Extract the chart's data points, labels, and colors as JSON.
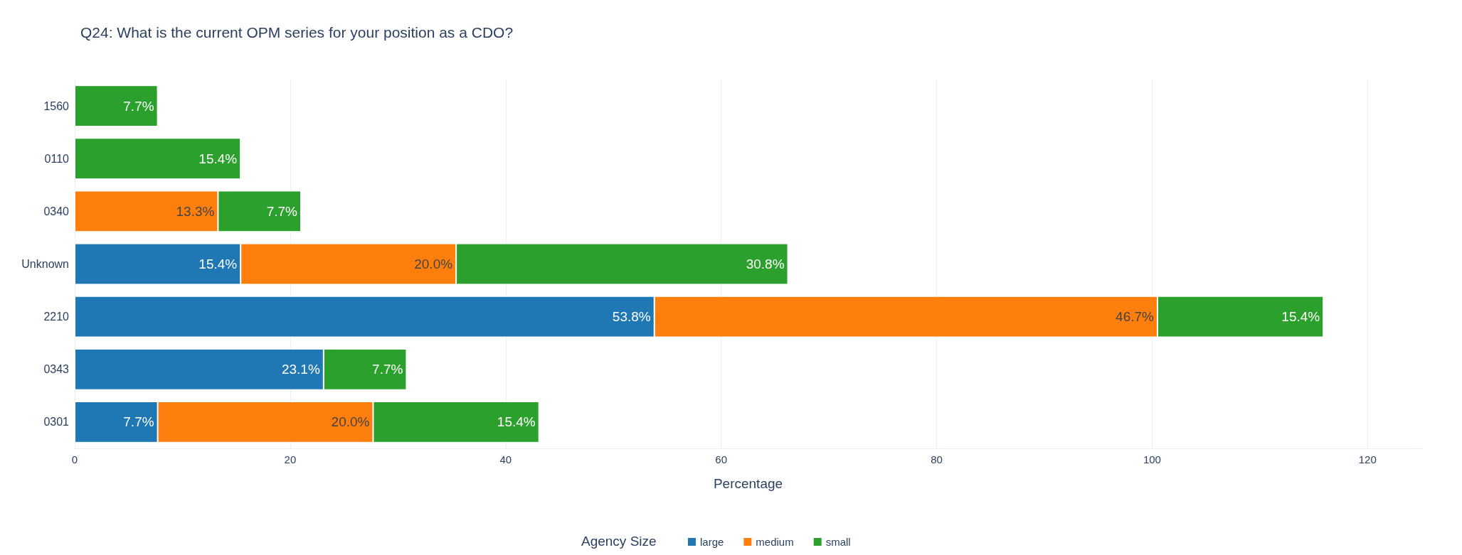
{
  "chart_data": {
    "type": "bar",
    "orientation": "horizontal",
    "stacked": true,
    "title": "Q24: What is the current OPM series for your position as a CDO?",
    "xlabel": "Percentage",
    "legend_title": "Agency Size",
    "categories": [
      "1560",
      "0110",
      "0340",
      "Unknown",
      "2210",
      "0343",
      "0301"
    ],
    "series": [
      {
        "name": "large",
        "color": "#1f77b4",
        "values": [
          null,
          null,
          null,
          15.4,
          53.8,
          23.1,
          7.7
        ],
        "value_labels": [
          null,
          null,
          null,
          "15.4%",
          "53.8%",
          "23.1%",
          "7.7%"
        ]
      },
      {
        "name": "medium",
        "color": "#ff7f0e",
        "values": [
          null,
          null,
          13.3,
          20.0,
          46.7,
          null,
          20.0
        ],
        "value_labels": [
          null,
          null,
          "13.3%",
          "20.0%",
          "46.7%",
          null,
          "20.0%"
        ]
      },
      {
        "name": "small",
        "color": "#2ca02c",
        "values": [
          7.7,
          15.4,
          7.7,
          30.8,
          15.4,
          7.7,
          15.4
        ],
        "value_labels": [
          "7.7%",
          "15.4%",
          "7.7%",
          "30.8%",
          "15.4%",
          "7.7%",
          "15.4%"
        ]
      }
    ],
    "xlim": [
      0,
      125
    ],
    "xticks": [
      0,
      20,
      40,
      60,
      80,
      100,
      120
    ],
    "grid": "x",
    "legend": "bottom"
  }
}
